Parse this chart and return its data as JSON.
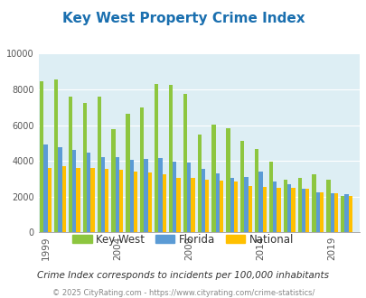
{
  "title": "Key West Property Crime Index",
  "title_color": "#1a6faf",
  "subtitle": "Crime Index corresponds to incidents per 100,000 inhabitants",
  "footer": "© 2025 CityRating.com - https://www.cityrating.com/crime-statistics/",
  "years": [
    1999,
    2000,
    2001,
    2002,
    2003,
    2004,
    2005,
    2006,
    2007,
    2008,
    2009,
    2010,
    2011,
    2012,
    2013,
    2014,
    2015,
    2016,
    2017,
    2018,
    2019,
    2020
  ],
  "key_west": [
    8450,
    8550,
    7600,
    7250,
    7600,
    5800,
    6650,
    7000,
    8300,
    8250,
    7750,
    5500,
    6050,
    5850,
    5100,
    4650,
    3950,
    2950,
    3050,
    3250,
    2950,
    2050
  ],
  "florida": [
    4900,
    4750,
    4600,
    4450,
    4200,
    4200,
    4050,
    4100,
    4150,
    3950,
    3900,
    3550,
    3300,
    3050,
    3100,
    3400,
    2850,
    2700,
    2450,
    2250,
    2200,
    2150
  ],
  "national": [
    3600,
    3700,
    3600,
    3600,
    3550,
    3500,
    3400,
    3350,
    3250,
    3050,
    3050,
    2950,
    2900,
    2850,
    2600,
    2550,
    2500,
    2500,
    2450,
    2250,
    2200,
    2050
  ],
  "key_west_color": "#8dc63f",
  "florida_color": "#5b9bd5",
  "national_color": "#ffc000",
  "bg_color": "#ddeef4",
  "ylim": [
    0,
    10000
  ],
  "yticks": [
    0,
    2000,
    4000,
    6000,
    8000,
    10000
  ],
  "bar_width": 0.27,
  "tick_years": [
    1999,
    2004,
    2009,
    2014,
    2019
  ]
}
